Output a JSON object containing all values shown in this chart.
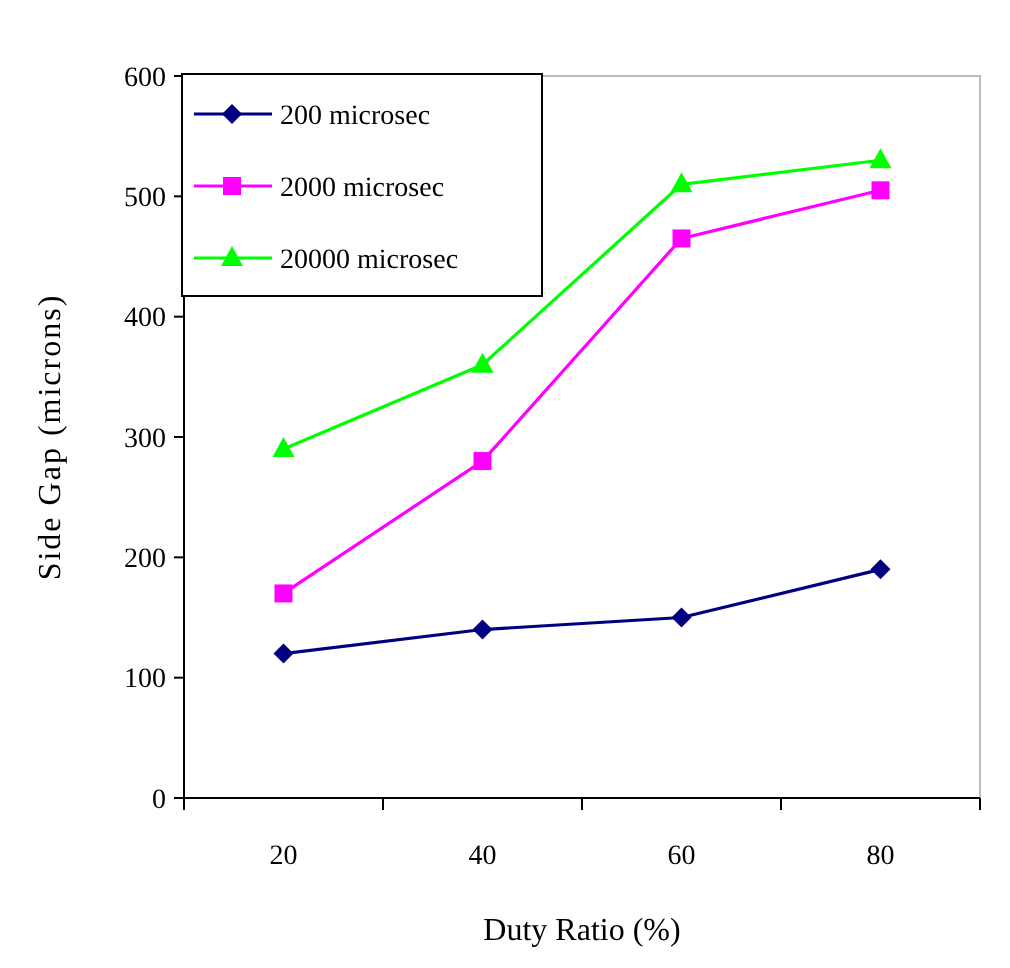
{
  "chart_data": {
    "type": "line",
    "xlabel": "Duty Ratio (%)",
    "ylabel": "Side Gap (microns)",
    "categories": [
      "20",
      "40",
      "60",
      "80"
    ],
    "series": [
      {
        "name": "200 microsec",
        "color": "#000080",
        "marker": "diamond",
        "values": [
          120,
          140,
          150,
          190
        ]
      },
      {
        "name": "2000 microsec",
        "color": "#ff00ff",
        "marker": "square",
        "values": [
          170,
          280,
          465,
          505
        ]
      },
      {
        "name": "20000 microsec",
        "color": "#00ff00",
        "marker": "triangle",
        "values": [
          290,
          360,
          510,
          530
        ]
      }
    ],
    "ylim": [
      0,
      600
    ],
    "yticks": [
      0,
      100,
      200,
      300,
      400,
      500,
      600
    ],
    "grid": false,
    "legend": "top left",
    "line_style": "solid"
  }
}
